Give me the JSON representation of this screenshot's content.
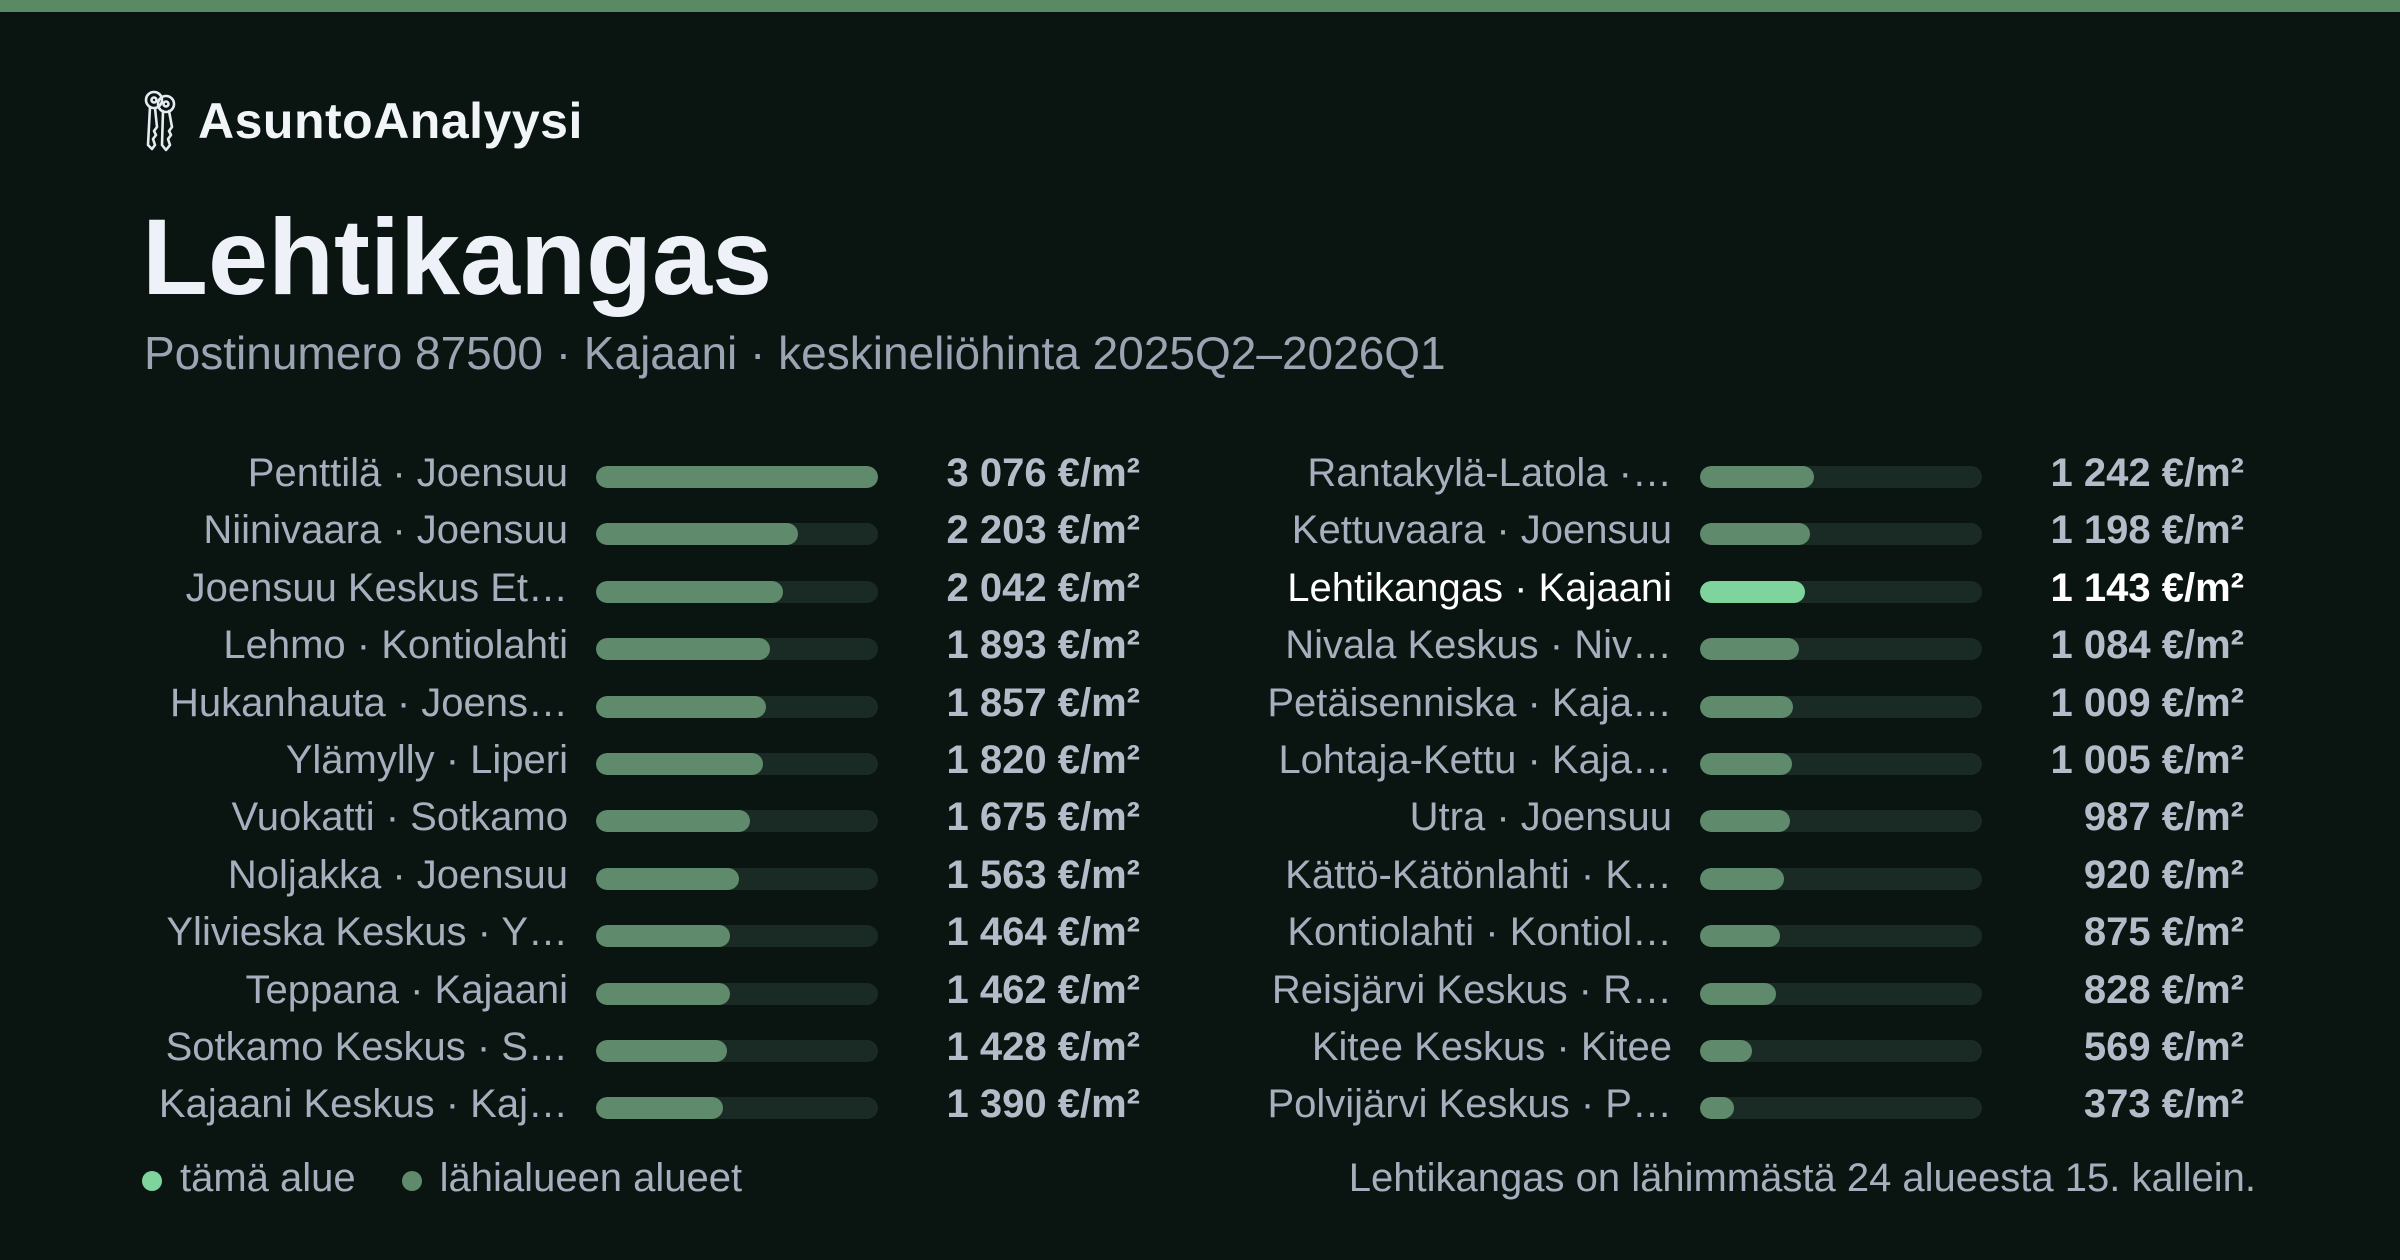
{
  "brand": {
    "name": "AsuntoAnalyysi",
    "icon": "keys-icon"
  },
  "header": {
    "title": "Lehtikangas",
    "subtitle": "Postinumero 87500 · Kajaani · keskineliöhinta 2025Q2–2026Q1"
  },
  "colors": {
    "accent_bar": "#5a8a63",
    "highlight": "#7fd39c",
    "neighbor": "#5f8a6c",
    "track": "#1a2b26",
    "background": "#0a1512"
  },
  "legend": {
    "this_area": "tämä alue",
    "nearby_areas": "lähialueen alueet"
  },
  "footnote": "Lehtikangas on lähimmästä 24 alueesta 15. kallein.",
  "chart_data": {
    "type": "bar",
    "orientation": "horizontal",
    "unit": "€/m²",
    "xlim": [
      0,
      3076
    ],
    "grid": false,
    "highlight": "Lehtikangas · Kajaani",
    "columns": [
      {
        "categories": [
          "Penttilä · Joensuu",
          "Niinivaara · Joensuu",
          "Joensuu Keskus Et…",
          "Lehmo · Kontiolahti",
          "Hukanhauta · Joens…",
          "Ylämylly · Liperi",
          "Vuokatti · Sotkamo",
          "Noljakka · Joensuu",
          "Ylivieska Keskus · Y…",
          "Teppana · Kajaani",
          "Sotkamo Keskus · S…",
          "Kajaani Keskus · Kaj…"
        ],
        "values": [
          3076,
          2203,
          2042,
          1893,
          1857,
          1820,
          1675,
          1563,
          1464,
          1462,
          1428,
          1390
        ],
        "value_labels": [
          "3 076 €/m²",
          "2 203 €/m²",
          "2 042 €/m²",
          "1 893 €/m²",
          "1 857 €/m²",
          "1 820 €/m²",
          "1 675 €/m²",
          "1 563 €/m²",
          "1 464 €/m²",
          "1 462 €/m²",
          "1 428 €/m²",
          "1 390 €/m²"
        ]
      },
      {
        "categories": [
          "Rantakylä-Latola ·…",
          "Kettuvaara · Joensuu",
          "Lehtikangas · Kajaani",
          "Nivala Keskus · Niv…",
          "Petäisenniska · Kaja…",
          "Lohtaja-Kettu · Kaja…",
          "Utra · Joensuu",
          "Kättö-Kätönlahti · K…",
          "Kontiolahti · Kontiol…",
          "Reisjärvi Keskus · R…",
          "Kitee Keskus · Kitee",
          "Polvijärvi Keskus · P…"
        ],
        "values": [
          1242,
          1198,
          1143,
          1084,
          1009,
          1005,
          987,
          920,
          875,
          828,
          569,
          373
        ],
        "value_labels": [
          "1 242 €/m²",
          "1 198 €/m²",
          "1 143 €/m²",
          "1 084 €/m²",
          "1 009 €/m²",
          "1 005 €/m²",
          "987 €/m²",
          "920 €/m²",
          "875 €/m²",
          "828 €/m²",
          "569 €/m²",
          "373 €/m²"
        ]
      }
    ]
  }
}
